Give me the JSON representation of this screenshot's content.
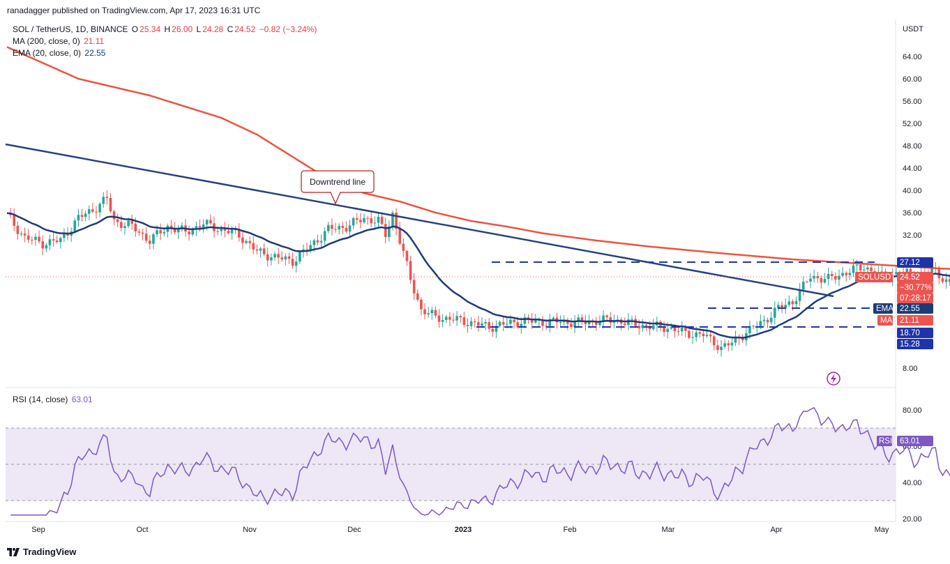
{
  "header": {
    "publisher_line": "ranadagger published on TradingView.com, Apr 17, 2023 16:31 UTC"
  },
  "legend": {
    "symbol": "SOL / TetherUS, 1D, BINANCE",
    "o_label": "O",
    "o_value": "25.34",
    "h_label": "H",
    "h_value": "26.00",
    "l_label": "L",
    "l_value": "24.28",
    "c_label": "C",
    "c_value": "24.52",
    "change": "−0.82 (−3.24%)",
    "ma_label": "MA (200, close, 0)",
    "ma_value": "21.11",
    "ema_label": "EMA (20, close, 0)",
    "ema_value": "22.55",
    "rsi_label": "RSI (14, close)",
    "rsi_value": "63.01"
  },
  "annotation": {
    "text": "Downtrend line"
  },
  "brand": {
    "name": "TradingView"
  },
  "colors": {
    "up": "#26a69a",
    "down": "#ef5350",
    "ma": "#f0513f",
    "ema": "#1e3b78",
    "trendline": "#27417f",
    "hline": "#1e34a8",
    "rsi": "#7e57c2",
    "rsi_band": "#ede7f6"
  },
  "chart_data": [
    {
      "type": "candlestick",
      "title": "SOL / TetherUS, 1D, BINANCE",
      "y_axis_unit": "USDT",
      "y_ticks": [
        "64.00",
        "60.00",
        "56.00",
        "52.00",
        "48.00",
        "44.00",
        "40.00",
        "36.00",
        "32.00",
        "8.00"
      ],
      "x_ticks": [
        "Sep",
        "Oct",
        "Nov",
        "Dec",
        "2023",
        "Feb",
        "Mar",
        "Apr",
        "May"
      ],
      "price_badges": [
        {
          "label": "SOLUSDT",
          "value": "24.52",
          "extra1": "−30.77%",
          "extra2": "07:28:17"
        },
        {
          "label": "EMA",
          "value": "22.55"
        },
        {
          "label": "MA",
          "value": "21.11"
        },
        {
          "label": "",
          "value": "27.12"
        },
        {
          "label": "",
          "value": "18.70"
        },
        {
          "label": "",
          "value": "15.28"
        }
      ],
      "horizontal_levels": [
        27.12,
        18.7
      ],
      "series": [
        {
          "name": "MA (200, close, 0)",
          "last": 21.11
        },
        {
          "name": "EMA (20, close, 0)",
          "last": 22.55
        }
      ]
    },
    {
      "type": "line",
      "title": "RSI (14, close)",
      "y_ticks": [
        "80.00",
        "60.00",
        "40.00",
        "20.00"
      ],
      "bands": [
        70,
        30
      ],
      "last": 63.01
    }
  ]
}
